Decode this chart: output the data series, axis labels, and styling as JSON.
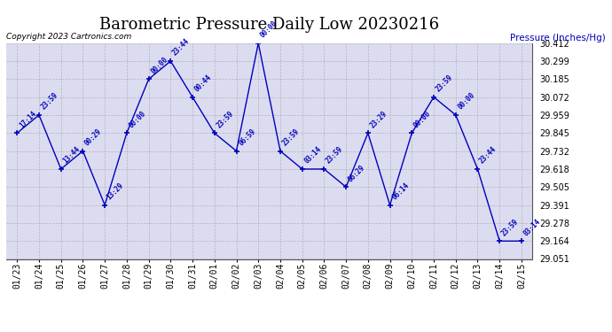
{
  "title": "Barometric Pressure Daily Low 20230216",
  "ylabel": "Pressure (Inches/Hg)",
  "copyright": "Copyright 2023 Cartronics.com",
  "line_color": "#0000bb",
  "background_color": "#ffffff",
  "plot_bg_color": "#dcdcf0",
  "grid_color": "#aaaaaa",
  "title_fontsize": 13,
  "ylim": [
    29.051,
    30.412
  ],
  "yticks": [
    29.051,
    29.164,
    29.278,
    29.391,
    29.505,
    29.618,
    29.732,
    29.845,
    29.959,
    30.072,
    30.185,
    30.299,
    30.412
  ],
  "dates": [
    "01/23",
    "01/24",
    "01/25",
    "01/26",
    "01/27",
    "01/28",
    "01/29",
    "01/30",
    "01/31",
    "02/01",
    "02/02",
    "02/03",
    "02/04",
    "02/05",
    "02/06",
    "02/07",
    "02/08",
    "02/09",
    "02/10",
    "02/11",
    "02/12",
    "02/13",
    "02/14",
    "02/15"
  ],
  "values": [
    29.845,
    29.959,
    29.618,
    29.732,
    29.391,
    29.845,
    30.185,
    30.299,
    30.072,
    29.845,
    29.732,
    30.412,
    29.732,
    29.618,
    29.618,
    29.505,
    29.845,
    29.391,
    29.845,
    30.072,
    29.959,
    29.618,
    29.164,
    29.164
  ],
  "time_labels": [
    "17:14",
    "23:59",
    "13:44",
    "00:29",
    "13:29",
    "00:00",
    "00:00",
    "23:44",
    "00:44",
    "23:59",
    "06:59",
    "00:00",
    "23:59",
    "03:14",
    "23:59",
    "06:29",
    "23:29",
    "06:14",
    "00:00",
    "23:59",
    "00:00",
    "23:44",
    "23:59",
    "03:14"
  ]
}
